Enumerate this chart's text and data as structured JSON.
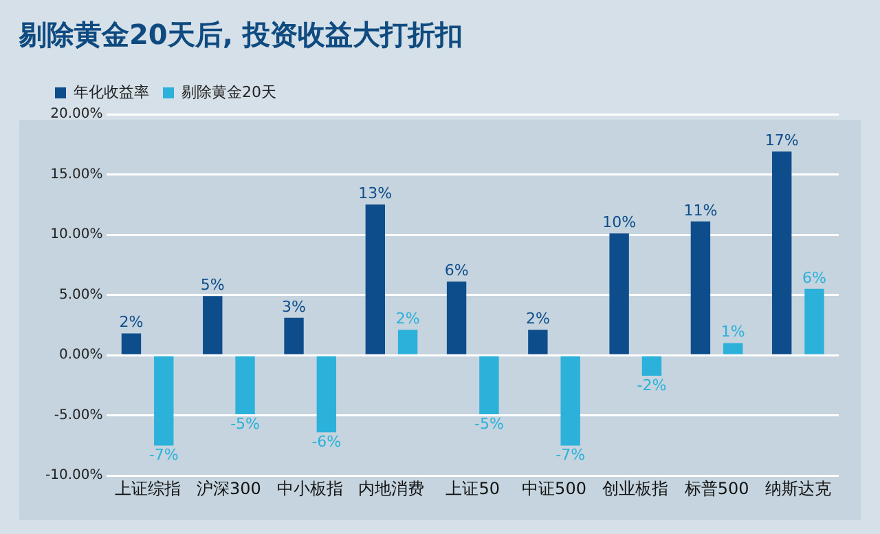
{
  "chart_data": {
    "type": "bar",
    "title": "剔除黄金20天后, 投资收益大打折扣",
    "categories": [
      "上证综指",
      "沪深300",
      "中小板指",
      "内地消费",
      "上证50",
      "中证500",
      "创业板指",
      "标普500",
      "纳斯达克"
    ],
    "series": [
      {
        "name": "年化收益率",
        "color": "#0e4d8c",
        "values": [
          1.8,
          4.9,
          3.1,
          12.5,
          6.1,
          2.1,
          10.1,
          11.1,
          16.9
        ],
        "value_labels": [
          "2%",
          "5%",
          "3%",
          "13%",
          "6%",
          "2%",
          "10%",
          "11%",
          "17%"
        ]
      },
      {
        "name": "剔除黄金20天",
        "color": "#2bb1da",
        "values": [
          -7.5,
          -4.9,
          -6.4,
          2.1,
          -4.9,
          -7.5,
          -1.7,
          1.0,
          5.5
        ],
        "value_labels": [
          "-7%",
          "-5%",
          "-6%",
          "2%",
          "-5%",
          "-7%",
          "-2%",
          "1%",
          "6%"
        ]
      }
    ],
    "ylim": [
      -10,
      20
    ],
    "yticks": [
      {
        "value": -10,
        "label": "-10.00%"
      },
      {
        "value": -5,
        "label": "-5.00%"
      },
      {
        "value": 0,
        "label": "0.00%"
      },
      {
        "value": 5,
        "label": "5.00%"
      },
      {
        "value": 10,
        "label": "10.00%"
      },
      {
        "value": 15,
        "label": "15.00%"
      },
      {
        "value": 20,
        "label": "20.00%"
      }
    ],
    "grid": "y",
    "legend": "top left"
  }
}
